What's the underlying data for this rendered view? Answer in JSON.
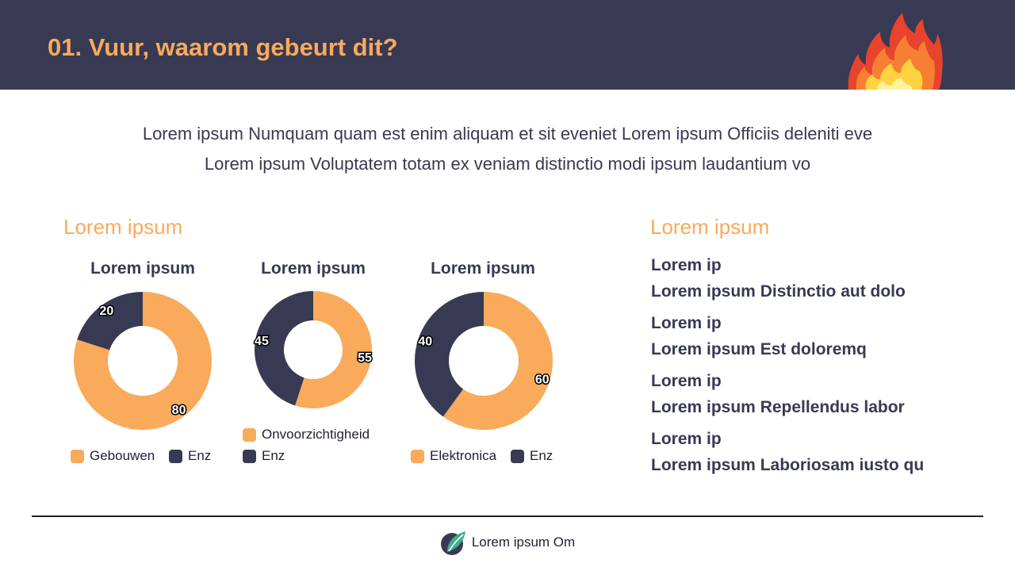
{
  "header": {
    "title": "01. Vuur, waarom gebeurt dit?",
    "icon": "fire-icon"
  },
  "intro": {
    "line1": "Lorem ipsum Numquam quam est enim aliquam et sit eveniet Lorem ipsum Officiis deleniti eve",
    "line2": "Lorem ipsum Voluptatem totam ex veniam distinctio modi ipsum laudantium vo"
  },
  "left_section": {
    "title": "Lorem ipsum"
  },
  "right_section": {
    "title": "Lorem ipsum",
    "items": [
      {
        "title": "Lorem ip",
        "text": "Lorem ipsum Distinctio aut dolo"
      },
      {
        "title": "Lorem ip",
        "text": "Lorem ipsum Est doloremq"
      },
      {
        "title": "Lorem ip",
        "text": "Lorem ipsum Repellendus labor"
      },
      {
        "title": "Lorem ip",
        "text": "Lorem ipsum Laboriosam iusto qu"
      }
    ]
  },
  "colors": {
    "primary": "#f9aa5b",
    "secondary": "#383a53",
    "header_bg": "#383a53",
    "text": "#383a53"
  },
  "chart_data": [
    {
      "type": "pie",
      "title": "Lorem ipsum",
      "categories": [
        "Gebouwen",
        "Enz"
      ],
      "values": [
        80,
        20
      ],
      "colors": [
        "#f9aa5b",
        "#383a53"
      ],
      "legend": "bottom"
    },
    {
      "type": "pie",
      "title": "Lorem ipsum",
      "categories": [
        "Onvoorzichtigheid",
        "Enz"
      ],
      "values": [
        55,
        45
      ],
      "colors": [
        "#f9aa5b",
        "#383a53"
      ],
      "legend": "bottom"
    },
    {
      "type": "pie",
      "title": "Lorem ipsum",
      "categories": [
        "Elektronica",
        "Enz"
      ],
      "values": [
        60,
        40
      ],
      "colors": [
        "#f9aa5b",
        "#383a53"
      ],
      "legend": "bottom"
    }
  ],
  "footer": {
    "text": "Lorem ipsum Om",
    "icon": "leaf-logo-icon"
  }
}
